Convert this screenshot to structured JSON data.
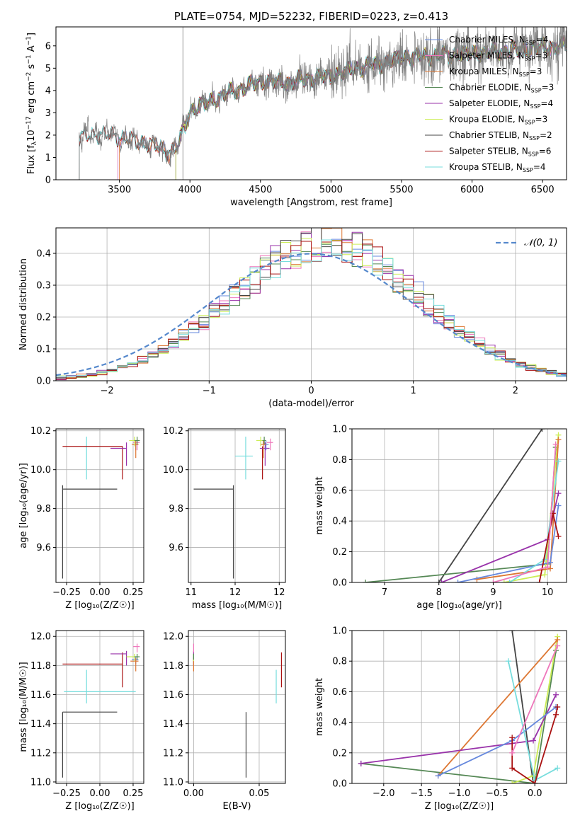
{
  "colors": {
    "Chabrier MILES": "#6688dd",
    "Salpeter MILES": "#ee77bb",
    "Kroupa MILES": "#dd7733",
    "Chabrier ELODIE": "#558855",
    "Salpeter ELODIE": "#9933aa",
    "Kroupa ELODIE": "#ccee55",
    "Chabrier STELIB": "#444444",
    "Salpeter STELIB": "#aa1111",
    "Kroupa STELIB": "#77dddd",
    "gauss": "#5588cc",
    "data": "#808080"
  },
  "chart_data": [
    {
      "id": "spectrum",
      "type": "line",
      "title": "PLATE=0754, MJD=52232, FIBERID=0223, z=0.413",
      "xlabel": "wavelength [Angstrom, rest frame]",
      "ylabel_parts": [
        "Flux [f",
        "λ",
        "10",
        "−17",
        " erg cm",
        "−2",
        " s",
        "−1",
        " A",
        "−1",
        "]"
      ],
      "xlim": [
        3050,
        6670
      ],
      "ylim": [
        0,
        6.85
      ],
      "xticks": [
        3500,
        4000,
        4500,
        5000,
        5500,
        6000,
        6500
      ],
      "yticks": [
        0,
        1,
        2,
        3,
        4,
        5,
        6
      ],
      "continuum_knots": {
        "x": [
          3215,
          3300,
          3450,
          3600,
          3750,
          3850,
          3920,
          4000,
          4150,
          4300,
          4500,
          4700,
          4850,
          5000,
          5200,
          5400,
          5500,
          5700,
          6000,
          6300,
          6500,
          6670
        ],
        "y": [
          1.85,
          2.05,
          2.0,
          1.75,
          1.55,
          1.2,
          1.6,
          3.1,
          3.55,
          3.95,
          4.4,
          4.35,
          4.55,
          4.65,
          5.05,
          5.25,
          5.5,
          5.55,
          5.65,
          5.8,
          5.95,
          6.0
        ]
      },
      "series": [
        {
          "name": "Chabrier MILES",
          "nssp": "4",
          "start": 3490
        },
        {
          "name": "Salpeter MILES",
          "nssp": "3",
          "start": 3490
        },
        {
          "name": "Kroupa MILES",
          "nssp": "3",
          "start": 3500
        },
        {
          "name": "Chabrier ELODIE",
          "nssp": "3",
          "start": 3900
        },
        {
          "name": "Salpeter ELODIE",
          "nssp": "4",
          "start": 3900
        },
        {
          "name": "Kroupa ELODIE",
          "nssp": "3",
          "start": 3900
        },
        {
          "name": "Chabrier STELIB",
          "nssp": "2",
          "start": 3215
        },
        {
          "name": "Salpeter STELIB",
          "nssp": "6",
          "start": 3215
        },
        {
          "name": "Kroupa STELIB",
          "nssp": "4",
          "start": 3215
        }
      ],
      "legend": "top-right",
      "grid": false
    },
    {
      "id": "residuals",
      "type": "histogram",
      "xlabel": "(data-model)/error",
      "ylabel": "Normed distribution",
      "xlim": [
        -2.5,
        2.5
      ],
      "ylim": [
        0,
        0.48
      ],
      "xticks": [
        -2,
        -1,
        0,
        1,
        2
      ],
      "yticks": [
        0.0,
        0.1,
        0.2,
        0.3,
        0.4
      ],
      "bin_width": 0.1,
      "gaussian_label": "𝒩(0, 1)",
      "legend": "top-right",
      "grid": true
    },
    {
      "id": "age_vs_Z",
      "type": "errorbar",
      "xlabel": "Z [log₁₀(Z/Z☉)]",
      "ylabel": "age  [log₁₀(age/yr)]",
      "xlim": [
        -0.33,
        0.33
      ],
      "ylim": [
        9.42,
        10.21
      ],
      "xticks": [
        -0.25,
        0.0,
        0.25
      ],
      "yticks": [
        9.6,
        9.8,
        10.0,
        10.2
      ],
      "points": [
        {
          "s": "Chabrier STELIB",
          "x": -0.28,
          "y": 9.9,
          "xerr": [
            0.0,
            0.41
          ],
          "yerr": [
            0.46,
            0.02
          ]
        },
        {
          "s": "Kroupa STELIB",
          "x": -0.1,
          "y": 10.07,
          "xerr": [
            0.0,
            0.0
          ],
          "yerr": [
            0.12,
            0.1
          ]
        },
        {
          "s": "Salpeter STELIB",
          "x": 0.17,
          "y": 10.12,
          "xerr": [
            0.45,
            0.0
          ],
          "yerr": [
            0.17,
            0.0
          ]
        },
        {
          "s": "Salpeter ELODIE",
          "x": 0.2,
          "y": 10.11,
          "xerr": [
            0.12,
            0.0
          ],
          "yerr": [
            0.09,
            0.03
          ]
        },
        {
          "s": "Chabrier MILES",
          "x": 0.27,
          "y": 10.13,
          "xerr": [
            0.02,
            0.02
          ],
          "yerr": [
            0.03,
            0.02
          ]
        },
        {
          "s": "Salpeter MILES",
          "x": 0.28,
          "y": 10.14,
          "xerr": [
            0.03,
            0.02
          ],
          "yerr": [
            0.04,
            0.02
          ]
        },
        {
          "s": "Kroupa MILES",
          "x": 0.27,
          "y": 10.13,
          "xerr": [
            0.03,
            0.02
          ],
          "yerr": [
            0.07,
            0.02
          ]
        },
        {
          "s": "Kroupa ELODIE",
          "x": 0.26,
          "y": 10.15,
          "xerr": [
            0.04,
            0.02
          ],
          "yerr": [
            0.03,
            0.02
          ]
        },
        {
          "s": "Chabrier ELODIE",
          "x": 0.28,
          "y": 10.15,
          "xerr": [
            0.02,
            0.02
          ],
          "yerr": [
            0.02,
            0.02
          ]
        }
      ],
      "grid": true
    },
    {
      "id": "age_vs_mass",
      "type": "errorbar",
      "xlabel": "mass [log₁₀(M/M☉)]",
      "ylabel": "",
      "xlim": [
        10.97,
        12.07
      ],
      "ylim": [
        9.42,
        10.21
      ],
      "xticks": [
        11,
        11.5,
        12
      ],
      "yticks": [
        9.6,
        9.8,
        10.0,
        10.2
      ],
      "points": [
        {
          "s": "Chabrier STELIB",
          "x": 11.48,
          "y": 9.9,
          "xerr": [
            0.45,
            0.0
          ],
          "yerr": [
            0.46,
            0.02
          ]
        },
        {
          "s": "Kroupa STELIB",
          "x": 11.62,
          "y": 10.07,
          "xerr": [
            0.12,
            0.08
          ],
          "yerr": [
            0.12,
            0.1
          ]
        },
        {
          "s": "Salpeter STELIB",
          "x": 11.81,
          "y": 10.12,
          "xerr": [
            0.0,
            0.0
          ],
          "yerr": [
            0.17,
            0.0
          ]
        },
        {
          "s": "Salpeter ELODIE",
          "x": 11.84,
          "y": 10.11,
          "xerr": [
            0.06,
            0.05
          ],
          "yerr": [
            0.09,
            0.03
          ]
        },
        {
          "s": "Chabrier MILES",
          "x": 11.85,
          "y": 10.13,
          "xerr": [
            0.03,
            0.03
          ],
          "yerr": [
            0.03,
            0.02
          ]
        },
        {
          "s": "Salpeter MILES",
          "x": 11.9,
          "y": 10.14,
          "xerr": [
            0.04,
            0.03
          ],
          "yerr": [
            0.04,
            0.02
          ]
        },
        {
          "s": "Kroupa MILES",
          "x": 11.82,
          "y": 10.13,
          "xerr": [
            0.03,
            0.03
          ],
          "yerr": [
            0.07,
            0.02
          ]
        },
        {
          "s": "Kroupa ELODIE",
          "x": 11.79,
          "y": 10.15,
          "xerr": [
            0.05,
            0.03
          ],
          "yerr": [
            0.03,
            0.02
          ]
        },
        {
          "s": "Chabrier ELODIE",
          "x": 11.83,
          "y": 10.15,
          "xerr": [
            0.02,
            0.02
          ],
          "yerr": [
            0.02,
            0.02
          ]
        }
      ],
      "grid": true
    },
    {
      "id": "weight_vs_age",
      "type": "line",
      "xlabel": "age  [log₁₀(age/yr)]",
      "ylabel": "mass weight",
      "xlim": [
        6.4,
        10.35
      ],
      "ylim": [
        0,
        1.0
      ],
      "xticks": [
        7,
        8,
        9,
        10
      ],
      "yticks": [
        0.0,
        0.2,
        0.4,
        0.6,
        0.8,
        1.0
      ],
      "lines": [
        {
          "s": "Chabrier STELIB",
          "x": [
            8.0,
            9.9
          ],
          "y": [
            0.0,
            1.0
          ]
        },
        {
          "s": "Chabrier ELODIE",
          "x": [
            6.65,
            10.0,
            10.15
          ],
          "y": [
            0.0,
            0.12,
            0.88
          ]
        },
        {
          "s": "Kroupa ELODIE",
          "x": [
            9.2,
            9.95,
            10.2
          ],
          "y": [
            0.0,
            0.05,
            0.96
          ]
        },
        {
          "s": "Kroupa MILES",
          "x": [
            8.7,
            10.05,
            10.2
          ],
          "y": [
            0.02,
            0.09,
            0.93
          ]
        },
        {
          "s": "Salpeter ELODIE",
          "x": [
            8.05,
            10.0,
            10.2
          ],
          "y": [
            0.0,
            0.28,
            0.58
          ]
        },
        {
          "s": "Chabrier MILES",
          "x": [
            8.35,
            10.05,
            10.2
          ],
          "y": [
            0.0,
            0.13,
            0.5
          ]
        },
        {
          "s": "Kroupa STELIB",
          "x": [
            9.3,
            9.95,
            10.2
          ],
          "y": [
            0.0,
            0.15,
            0.79
          ]
        },
        {
          "s": "Salpeter STELIB",
          "x": [
            9.85,
            10.1,
            10.2
          ],
          "y": [
            0.0,
            0.45,
            0.3
          ]
        },
        {
          "s": "Salpeter MILES",
          "x": [
            9.0,
            10.0,
            10.15
          ],
          "y": [
            0.0,
            0.1,
            0.9
          ]
        }
      ],
      "grid": true
    },
    {
      "id": "mass_vs_Z",
      "type": "errorbar",
      "xlabel": "Z [log₁₀(Z/Z☉)]",
      "ylabel": "mass [log₁₀(M/M☉)]",
      "xlim": [
        -0.33,
        0.33
      ],
      "ylim": [
        10.99,
        12.04
      ],
      "xticks": [
        -0.25,
        0.0,
        0.25
      ],
      "yticks": [
        11.0,
        11.2,
        11.4,
        11.6,
        11.8,
        12.0
      ],
      "points": [
        {
          "s": "Chabrier STELIB",
          "x": -0.28,
          "y": 11.48,
          "xerr": [
            0.0,
            0.41
          ],
          "yerr": [
            0.45,
            0.0
          ]
        },
        {
          "s": "Kroupa STELIB",
          "x": -0.1,
          "y": 11.62,
          "xerr": [
            0.17,
            0.37
          ],
          "yerr": [
            0.08,
            0.15
          ]
        },
        {
          "s": "Salpeter STELIB",
          "x": 0.17,
          "y": 11.81,
          "xerr": [
            0.45,
            0.0
          ],
          "yerr": [
            0.16,
            0.08
          ]
        },
        {
          "s": "Salpeter ELODIE",
          "x": 0.2,
          "y": 11.88,
          "xerr": [
            0.12,
            0.0
          ],
          "yerr": [
            0.08,
            0.02
          ]
        },
        {
          "s": "Chabrier MILES",
          "x": 0.27,
          "y": 11.84,
          "xerr": [
            0.03,
            0.02
          ],
          "yerr": [
            0.03,
            0.02
          ]
        },
        {
          "s": "Salpeter MILES",
          "x": 0.28,
          "y": 11.93,
          "xerr": [
            0.03,
            0.02
          ],
          "yerr": [
            0.04,
            0.02
          ]
        },
        {
          "s": "Kroupa MILES",
          "x": 0.27,
          "y": 11.83,
          "xerr": [
            0.04,
            0.02
          ],
          "yerr": [
            0.07,
            0.02
          ]
        },
        {
          "s": "Kroupa ELODIE",
          "x": 0.26,
          "y": 11.86,
          "xerr": [
            0.06,
            0.02
          ],
          "yerr": [
            0.03,
            0.02
          ]
        },
        {
          "s": "Chabrier ELODIE",
          "x": 0.28,
          "y": 11.86,
          "xerr": [
            0.02,
            0.02
          ],
          "yerr": [
            0.02,
            0.02
          ]
        }
      ],
      "grid": true
    },
    {
      "id": "mass_vs_ebv",
      "type": "errorbar",
      "xlabel": "E(B-V)",
      "ylabel": "",
      "xlim": [
        -0.004,
        0.07
      ],
      "ylim": [
        10.99,
        12.04
      ],
      "xticks": [
        0.0,
        0.05
      ],
      "yticks": [
        11.0,
        11.2,
        11.4,
        11.6,
        11.8,
        12.0
      ],
      "points": [
        {
          "s": "Chabrier STELIB",
          "x": 0.04,
          "y": 11.48,
          "xerr": [
            0,
            0
          ],
          "yerr": [
            0.45,
            0.0
          ]
        },
        {
          "s": "Kroupa STELIB",
          "x": 0.063,
          "y": 11.62,
          "xerr": [
            0,
            0
          ],
          "yerr": [
            0.08,
            0.15
          ]
        },
        {
          "s": "Salpeter STELIB",
          "x": 0.067,
          "y": 11.81,
          "xerr": [
            0,
            0
          ],
          "yerr": [
            0.16,
            0.08
          ]
        },
        {
          "s": "Salpeter ELODIE",
          "x": 0.0,
          "y": 11.88,
          "xerr": [
            0,
            0
          ],
          "yerr": [
            0.08,
            0.02
          ]
        },
        {
          "s": "Chabrier MILES",
          "x": 0.0,
          "y": 11.84,
          "xerr": [
            0,
            0
          ],
          "yerr": [
            0.03,
            0.02
          ]
        },
        {
          "s": "Salpeter MILES",
          "x": 0.0,
          "y": 11.93,
          "xerr": [
            0,
            0
          ],
          "yerr": [
            0.04,
            0.02
          ]
        },
        {
          "s": "Kroupa MILES",
          "x": 0.0,
          "y": 11.83,
          "xerr": [
            0,
            0
          ],
          "yerr": [
            0.07,
            0.02
          ]
        },
        {
          "s": "Kroupa ELODIE",
          "x": 0.0,
          "y": 11.86,
          "xerr": [
            0,
            0
          ],
          "yerr": [
            0.03,
            0.02
          ]
        },
        {
          "s": "Chabrier ELODIE",
          "x": 0.0,
          "y": 11.86,
          "xerr": [
            0,
            0
          ],
          "yerr": [
            0.02,
            0.02
          ]
        }
      ],
      "grid": true
    },
    {
      "id": "weight_vs_Z",
      "type": "line",
      "xlabel": "Z [log₁₀(Z/Z☉)]",
      "ylabel": "mass weight",
      "xlim": [
        -2.42,
        0.42
      ],
      "ylim": [
        0,
        1.0
      ],
      "xticks": [
        -2.0,
        -1.5,
        -1.0,
        -0.5,
        0.0
      ],
      "yticks": [
        0.0,
        0.2,
        0.4,
        0.6,
        0.8,
        1.0
      ],
      "lines": [
        {
          "s": "Chabrier STELIB",
          "x": [
            -0.3,
            -0.02,
            0.0
          ],
          "y": [
            1.0,
            0.0,
            0.0
          ]
        },
        {
          "s": "Chabrier ELODIE",
          "x": [
            -2.3,
            0.0,
            0.28
          ],
          "y": [
            0.13,
            0.0,
            0.87
          ]
        },
        {
          "s": "Kroupa ELODIE",
          "x": [
            -0.3,
            -0.02,
            0.3
          ],
          "y": [
            0.0,
            0.05,
            0.96
          ]
        },
        {
          "s": "Kroupa MILES",
          "x": [
            -1.28,
            0.3
          ],
          "y": [
            0.05,
            0.94
          ]
        },
        {
          "s": "Salpeter ELODIE",
          "x": [
            -2.3,
            -0.02,
            0.28
          ],
          "y": [
            0.13,
            0.28,
            0.58
          ]
        },
        {
          "s": "Chabrier MILES",
          "x": [
            -1.28,
            -0.3,
            0.28
          ],
          "y": [
            0.05,
            0.28,
            0.5
          ]
        },
        {
          "s": "Kroupa STELIB",
          "x": [
            -0.35,
            0.0,
            0.3
          ],
          "y": [
            0.8,
            0.02,
            0.1
          ]
        },
        {
          "s": "Salpeter STELIB",
          "x": [
            -0.3,
            -0.3,
            0.0,
            0.28,
            0.3
          ],
          "y": [
            0.3,
            0.1,
            0.0,
            0.45,
            0.5
          ]
        },
        {
          "s": "Salpeter MILES",
          "x": [
            -0.3,
            0.3
          ],
          "y": [
            0.2,
            0.9
          ]
        }
      ],
      "grid": true
    }
  ]
}
